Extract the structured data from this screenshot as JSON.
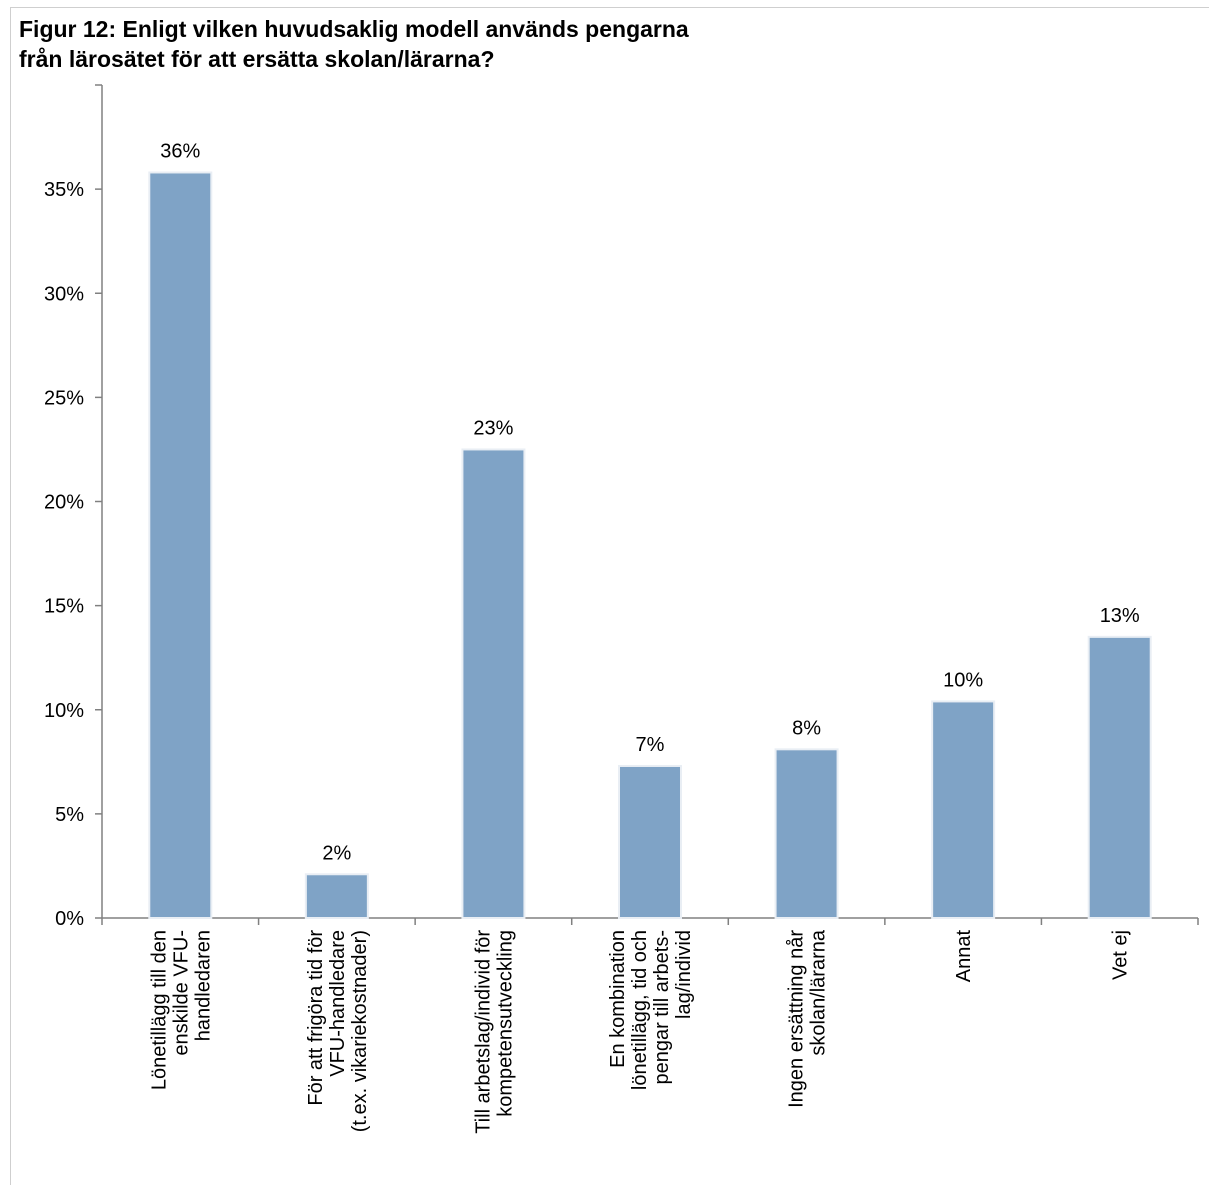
{
  "title_lines": [
    "Figur 12: Enligt vilken huvudsaklig modell används pengarna",
    "från lärosätet för att ersätta skolan/lärarna?"
  ],
  "colors": {
    "bar": "#7fa3c6",
    "bar_edge": "#e9eef4",
    "axis": "#808080"
  },
  "chart_data": {
    "type": "bar",
    "title": "Figur 12: Enligt vilken huvudsaklig modell används pengarna från lärosätet för att ersätta skolan/lärarna?",
    "xlabel": "",
    "ylabel": "",
    "ylim": [
      0,
      0.4
    ],
    "y_ticks": [
      0,
      0.05,
      0.1,
      0.15,
      0.2,
      0.25,
      0.3,
      0.35
    ],
    "y_tick_labels": [
      "0%",
      "5%",
      "10%",
      "15%",
      "20%",
      "25%",
      "30%",
      "35%"
    ],
    "categories": [
      [
        "Lönetillägg till den",
        "enskilde VFU-",
        "handledaren"
      ],
      [
        "För att frigöra tid för",
        "VFU-handledare",
        "(t.ex. vikariekostnader)"
      ],
      [
        "Till arbetslag/individ för",
        "kompetensutveckling"
      ],
      [
        "En kombination",
        "lönetillägg, tid och",
        "pengar till arbets-",
        "lag/individ"
      ],
      [
        "Ingen ersättning når",
        "skolan/lärarna"
      ],
      [
        "Annat"
      ],
      [
        "Vet ej"
      ]
    ],
    "values": [
      0.358,
      0.021,
      0.225,
      0.073,
      0.081,
      0.104,
      0.135
    ],
    "data_labels": [
      "36%",
      "2%",
      "23%",
      "7%",
      "8%",
      "10%",
      "13%"
    ],
    "grid": false,
    "legend": "none"
  }
}
